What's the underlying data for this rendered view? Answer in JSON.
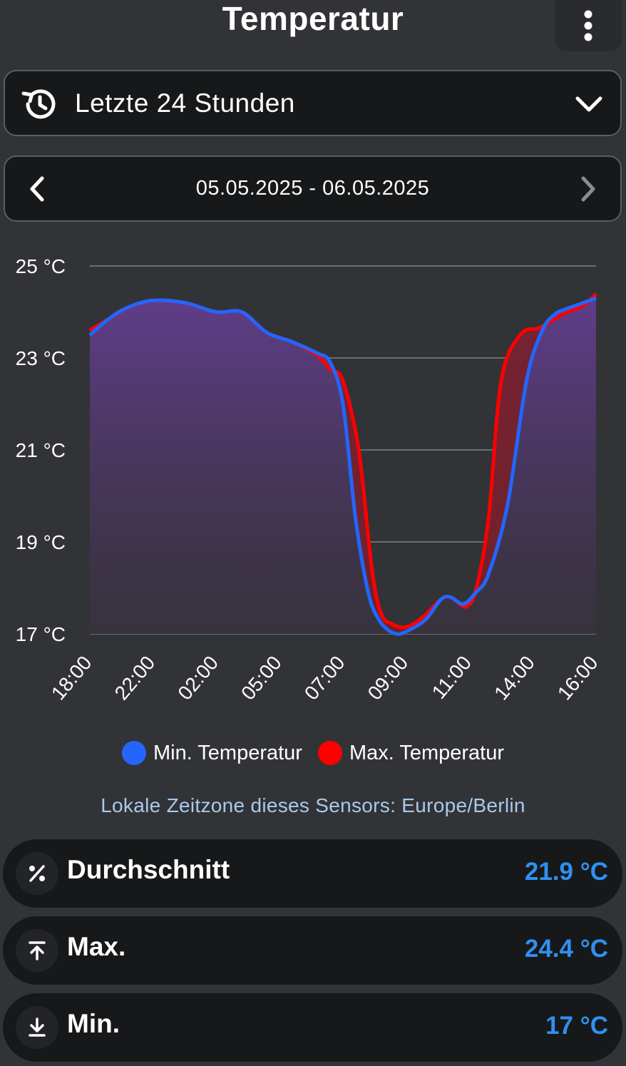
{
  "header": {
    "title": "Temperatur",
    "menu_icon": "more-vertical-icon"
  },
  "range_select": {
    "label": "Letzte 24 Stunden",
    "icon": "history-icon"
  },
  "date_nav": {
    "range": "05.05.2025 - 06.05.2025"
  },
  "chart_data": {
    "type": "line",
    "xlabel": "",
    "ylabel": "",
    "y_ticks": [
      "25 °C",
      "23 °C",
      "21 °C",
      "19 °C",
      "17 °C"
    ],
    "ylim": [
      17,
      25
    ],
    "x_ticks": [
      "18:00",
      "22:00",
      "02:00",
      "05:00",
      "07:00",
      "09:00",
      "11:00",
      "14:00",
      "16:00"
    ],
    "grid": true,
    "series": [
      {
        "name": "Min. Temperatur",
        "color": "#2266ff",
        "x": [
          0,
          0.3,
          0.6,
          1,
          1.5,
          2,
          2.4,
          2.8,
          3.2,
          3.6,
          3.8,
          4,
          4.2,
          4.4,
          4.55,
          4.7,
          4.85,
          5,
          5.3,
          5.55,
          5.7,
          5.9,
          6.1,
          6.3,
          6.6,
          6.9,
          7.15,
          7.35,
          7.5,
          7.7,
          7.9,
          8
        ],
        "values": [
          23.5,
          23.85,
          24.1,
          24.25,
          24.2,
          24.0,
          24.0,
          23.55,
          23.35,
          23.1,
          22.9,
          22.0,
          19.5,
          17.9,
          17.35,
          17.1,
          17.0,
          17.05,
          17.3,
          17.75,
          17.8,
          17.65,
          17.9,
          18.3,
          19.8,
          22.5,
          23.6,
          23.95,
          24.05,
          24.15,
          24.25,
          24.3
        ]
      },
      {
        "name": "Max. Temperatur",
        "color": "#ff0000",
        "x": [
          0,
          0.3,
          0.6,
          1,
          1.5,
          2,
          2.4,
          2.8,
          3.2,
          3.6,
          3.8,
          4,
          4.25,
          4.45,
          4.6,
          4.8,
          5,
          5.25,
          5.55,
          5.7,
          5.85,
          5.95,
          6.1,
          6.3,
          6.5,
          6.8,
          7.1,
          7.35,
          7.55,
          7.75,
          7.9,
          8
        ],
        "values": [
          23.6,
          23.85,
          24.1,
          24.25,
          24.2,
          24.0,
          24.0,
          23.55,
          23.35,
          23.05,
          22.75,
          22.5,
          21.0,
          18.5,
          17.45,
          17.2,
          17.15,
          17.35,
          17.75,
          17.8,
          17.65,
          17.6,
          17.95,
          19.5,
          22.5,
          23.5,
          23.65,
          23.85,
          24.0,
          24.1,
          24.25,
          24.4
        ]
      }
    ]
  },
  "legend": {
    "min_label": "Min. Temperatur",
    "max_label": "Max. Temperatur",
    "min_color": "#2266ff",
    "max_color": "#ff0000"
  },
  "timezone_note": "Lokale Zeitzone dieses Sensors: Europe/Berlin",
  "stats": {
    "average": {
      "label": "Durchschnitt",
      "value": "21.9 °C",
      "icon": "percent-icon"
    },
    "max": {
      "label": "Max.",
      "value": "24.4 °C",
      "icon": "arrow-up-to-line-icon"
    },
    "min": {
      "label": "Min.",
      "value": "17 °C",
      "icon": "arrow-down-to-line-icon"
    }
  },
  "colors": {
    "background": "#323336",
    "card": "#17181a",
    "accent": "#2f90f0"
  }
}
